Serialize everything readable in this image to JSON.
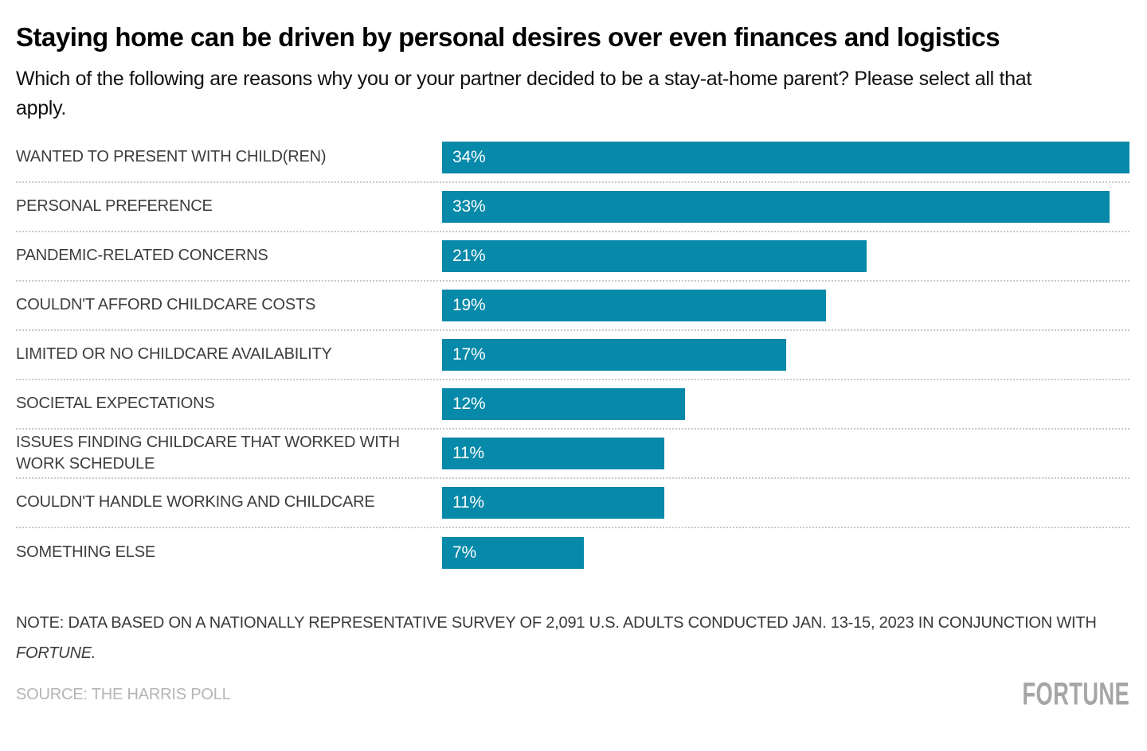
{
  "chart_data": {
    "type": "bar",
    "orientation": "horizontal",
    "title": "Staying home can be driven by personal desires over even finances and logistics",
    "subtitle": "Which of the following are reasons why you or your partner decided to be a stay-at-home parent? Please select all that apply.",
    "categories": [
      "WANTED TO PRESENT WITH CHILD(REN)",
      "PERSONAL PREFERENCE",
      "PANDEMIC-RELATED CONCERNS",
      "COULDN'T AFFORD CHILDCARE COSTS",
      "LIMITED OR NO CHILDCARE AVAILABILITY",
      "SOCIETAL EXPECTATIONS",
      "ISSUES FINDING CHILDCARE THAT WORKED WITH WORK SCHEDULE",
      "COULDN'T HANDLE WORKING AND CHILDCARE",
      "SOMETHING ELSE"
    ],
    "values": [
      34,
      33,
      21,
      19,
      17,
      12,
      11,
      11,
      7
    ],
    "value_suffix": "%",
    "xlim": [
      0,
      34
    ],
    "bar_color": "#0789a9",
    "value_label_color": "#ffffff",
    "grid": "dotted row separators",
    "legend": "none"
  },
  "footer": {
    "note_line1": "NOTE: DATA BASED ON A NATIONALLY REPRESENTATIVE SURVEY OF 2,091 U.S. ADULTS CONDUCTED JAN. 13-15, 2023 IN CONJUNCTION WITH",
    "note_line2": "FORTUNE.",
    "source": "SOURCE: THE HARRIS POLL",
    "logo": "FORTUNE"
  }
}
